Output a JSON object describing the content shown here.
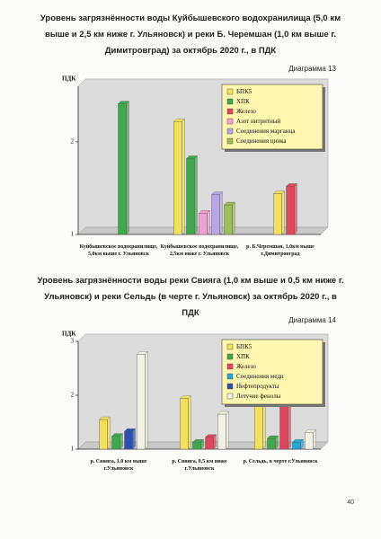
{
  "chart_data": [
    {
      "type": "bar",
      "title": "Уровень загрязнённости воды Куйбышевского водохранилища (5,0 км выше и 2,5 км ниже г. Ульяновск) и реки Б. Черемшан (1,0 км выше г. Димитровград) за октябрь 2020 г., в ПДК",
      "label": "Диаграмма 13",
      "ylabel": "ПДК",
      "categories": [
        "Куйбышевское водохранилище, 5,0км выше г. Ульяновск",
        "Куйбышевское водохранилище, 2,5км ниже г. Ульяновск",
        "р. Б.Черемшан, 1,0км выше г.Димитровград"
      ],
      "series": [
        {
          "name": "БПК5",
          "color": "#f2e15a",
          "values": [
            null,
            2.22,
            1.44
          ]
        },
        {
          "name": "ХПК",
          "color": "#3fa84a",
          "values": [
            2.41,
            1.82,
            null
          ]
        },
        {
          "name": "Железо",
          "color": "#e0475e",
          "values": [
            null,
            null,
            1.52
          ]
        },
        {
          "name": "Азот нитритный",
          "color": "#f0a0d4",
          "values": [
            null,
            1.23,
            null
          ]
        },
        {
          "name": "Соединения марганца",
          "color": "#b6a6e6",
          "values": [
            null,
            1.43,
            null
          ]
        },
        {
          "name": "Соединения цинка",
          "color": "#9cbf5a",
          "values": [
            null,
            1.32,
            null
          ]
        }
      ],
      "ylim": [
        1,
        2.6
      ],
      "yticks": [
        1,
        2
      ],
      "legend": "upper right"
    },
    {
      "type": "bar",
      "title": "Уровень загрязнённости воды реки Свияга (1,0 км выше и 0,5 км ниже г. Ульяновск) и реки Сельдь (в черте г. Ульяновск) за октябрь 2020 г., в ПДК",
      "label": "Диаграмма 14",
      "ylabel": "ПДК",
      "categories": [
        "р. Свияга, 1,0 км выше г.Ульяновск",
        "р. Свияга, 0,5 км ниже г.Ульяновск",
        "р. Сельдь, в черте г.Ульяновск"
      ],
      "series": [
        {
          "name": "БПК5",
          "color": "#f2e15a",
          "values": [
            1.55,
            1.94,
            2.04
          ]
        },
        {
          "name": "ХПК",
          "color": "#3fa84a",
          "values": [
            1.24,
            1.13,
            1.2
          ]
        },
        {
          "name": "Железо",
          "color": "#e0475e",
          "values": [
            null,
            1.22,
            1.94
          ]
        },
        {
          "name": "Соединения меди",
          "color": "#1fa8d8",
          "values": [
            null,
            null,
            1.13
          ]
        },
        {
          "name": "Нефтепродукты",
          "color": "#2f4fb0",
          "values": [
            1.33,
            null,
            null
          ]
        },
        {
          "name": "Летучие фенолы",
          "color": "#f1f1e4",
          "values": [
            2.76,
            1.65,
            1.31
          ]
        }
      ],
      "ylim": [
        1,
        3
      ],
      "yticks": [
        1,
        2,
        3
      ],
      "legend": "upper right"
    }
  ],
  "page_number": "40"
}
